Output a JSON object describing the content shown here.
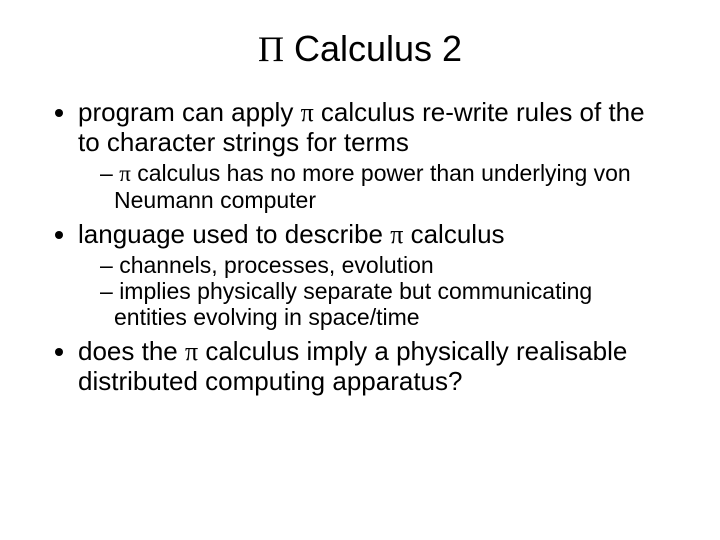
{
  "title_pre": "Π",
  "title_post": " Calculus 2",
  "b1_pre": "program can apply ",
  "b1_sym": "π",
  "b1_post": " calculus re-write rules of the to character strings for terms",
  "b1s1_sym": "π",
  "b1s1_post": " calculus has no more power than underlying von Neumann computer",
  "b2_pre": "language used to describe ",
  "b2_sym": "π",
  "b2_post": " calculus",
  "b2s1": "channels, processes, evolution",
  "b2s2": "implies physically separate but communicating entities evolving in space/time",
  "b3_pre": "does the ",
  "b3_sym": "π",
  "b3_post": " calculus imply a physically realisable distributed computing apparatus?"
}
